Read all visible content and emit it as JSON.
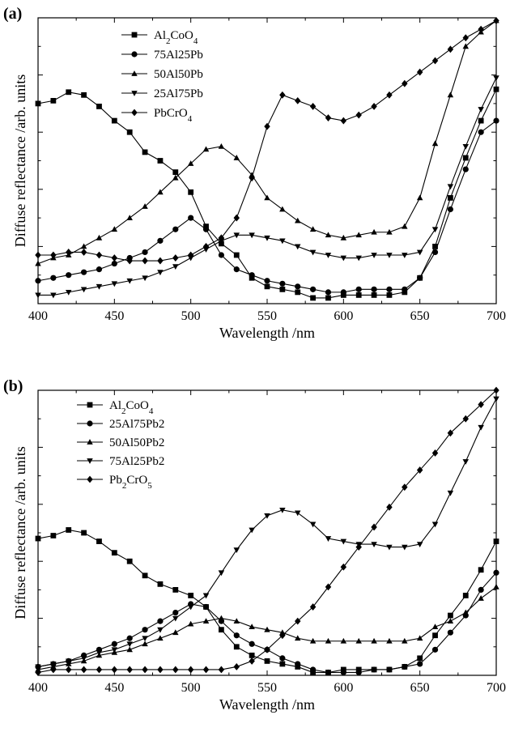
{
  "chart_data": [
    {
      "type": "line",
      "panel_label": "(a)",
      "xlabel": "Wavelength /nm",
      "ylabel": "Diffuse reflectance /arb. units",
      "xlim": [
        400,
        700
      ],
      "ylim": [
        0,
        100
      ],
      "x_ticks": [
        400,
        450,
        500,
        550,
        600,
        650,
        700
      ],
      "y_tick_labels": "none",
      "legend_position": "top-left",
      "x": [
        400,
        410,
        420,
        430,
        440,
        450,
        460,
        470,
        480,
        490,
        500,
        510,
        520,
        530,
        540,
        550,
        560,
        570,
        580,
        590,
        600,
        610,
        620,
        630,
        640,
        650,
        660,
        670,
        680,
        690,
        700
      ],
      "series": [
        {
          "name": "Al2CoO4",
          "label_html": "Al<sub>2</sub>CoO<sub>4</sub>",
          "marker": "square",
          "values": [
            70,
            71,
            74,
            73,
            69,
            64,
            60,
            53,
            50,
            46,
            39,
            27,
            21,
            17,
            9,
            6,
            5,
            4,
            2,
            2,
            3,
            3,
            3,
            3,
            4,
            9,
            20,
            37,
            51,
            64,
            75
          ]
        },
        {
          "name": "75Al25Pb",
          "label_html": "75Al25Pb",
          "marker": "circle",
          "values": [
            8,
            9,
            10,
            11,
            12,
            14,
            16,
            18,
            22,
            26,
            30,
            26,
            17,
            12,
            10,
            8,
            7,
            6,
            5,
            4,
            4,
            5,
            5,
            5,
            5,
            9,
            18,
            33,
            47,
            60,
            64
          ]
        },
        {
          "name": "50Al50Pb",
          "label_html": "50Al50Pb",
          "marker": "triangle-up",
          "values": [
            14,
            16,
            17,
            20,
            23,
            26,
            30,
            34,
            39,
            44,
            49,
            54,
            55,
            51,
            45,
            37,
            33,
            29,
            26,
            24,
            23,
            24,
            25,
            25,
            27,
            37,
            56,
            73,
            90,
            95,
            99
          ]
        },
        {
          "name": "25Al75Pb",
          "label_html": "25Al75Pb",
          "marker": "triangle-down",
          "values": [
            3,
            3,
            4,
            5,
            6,
            7,
            8,
            9,
            11,
            13,
            16,
            19,
            22,
            24,
            24,
            23,
            22,
            20,
            18,
            17,
            16,
            16,
            17,
            17,
            17,
            18,
            26,
            41,
            55,
            68,
            79
          ]
        },
        {
          "name": "PbCrO4",
          "label_html": "PbCrO<sub>4</sub>",
          "marker": "diamond",
          "values": [
            17,
            17,
            18,
            18,
            17,
            16,
            15,
            15,
            15,
            16,
            17,
            20,
            23,
            30,
            44,
            62,
            73,
            71,
            69,
            65,
            64,
            66,
            69,
            73,
            77,
            81,
            85,
            89,
            93,
            96,
            99
          ]
        }
      ]
    },
    {
      "type": "line",
      "panel_label": "(b)",
      "xlabel": "Wavelength /nm",
      "ylabel": "Diffuse reflectance /arb. units",
      "xlim": [
        400,
        700
      ],
      "ylim": [
        0,
        100
      ],
      "x_ticks": [
        400,
        450,
        500,
        550,
        600,
        650,
        700
      ],
      "y_tick_labels": "none",
      "legend_position": "top-left",
      "x": [
        400,
        410,
        420,
        430,
        440,
        450,
        460,
        470,
        480,
        490,
        500,
        510,
        520,
        530,
        540,
        550,
        560,
        570,
        580,
        590,
        600,
        610,
        620,
        630,
        640,
        650,
        660,
        670,
        680,
        690,
        700
      ],
      "series": [
        {
          "name": "Al2CoO4",
          "label_html": "Al<sub>2</sub>CoO<sub>4</sub>",
          "marker": "square",
          "values": [
            48,
            49,
            51,
            50,
            47,
            43,
            40,
            35,
            32,
            30,
            28,
            24,
            16,
            10,
            7,
            5,
            4,
            3,
            1,
            1,
            2,
            2,
            2,
            2,
            3,
            6,
            14,
            21,
            28,
            37,
            47
          ]
        },
        {
          "name": "25Al75Pb2",
          "label_html": "25Al75Pb2",
          "marker": "circle",
          "values": [
            3,
            4,
            5,
            7,
            9,
            11,
            13,
            16,
            19,
            22,
            25,
            24,
            19,
            14,
            11,
            9,
            6,
            4,
            2,
            1,
            1,
            1,
            2,
            2,
            3,
            4,
            9,
            15,
            21,
            30,
            36
          ]
        },
        {
          "name": "50Al50Pb2",
          "label_html": "50Al50Pb2",
          "marker": "triangle-up",
          "values": [
            2,
            3,
            4,
            5,
            7,
            8,
            9,
            11,
            13,
            15,
            18,
            19,
            20,
            19,
            17,
            16,
            15,
            13,
            12,
            12,
            12,
            12,
            12,
            12,
            12,
            13,
            17,
            19,
            22,
            27,
            31
          ]
        },
        {
          "name": "75Al25Pb2",
          "label_html": "75Al25Pb2",
          "marker": "triangle-down",
          "values": [
            3,
            4,
            5,
            6,
            8,
            9,
            11,
            13,
            16,
            20,
            24,
            28,
            36,
            44,
            51,
            56,
            58,
            57,
            53,
            48,
            47,
            46,
            46,
            45,
            45,
            46,
            53,
            64,
            75,
            87,
            97
          ]
        },
        {
          "name": "Pb2CrO5",
          "label_html": "Pb<sub>2</sub>CrO<sub>5</sub>",
          "marker": "diamond",
          "values": [
            1,
            2,
            2,
            2,
            2,
            2,
            2,
            2,
            2,
            2,
            2,
            2,
            2,
            3,
            5,
            9,
            14,
            19,
            24,
            31,
            38,
            45,
            52,
            59,
            66,
            72,
            78,
            85,
            90,
            95,
            100
          ]
        }
      ]
    }
  ]
}
